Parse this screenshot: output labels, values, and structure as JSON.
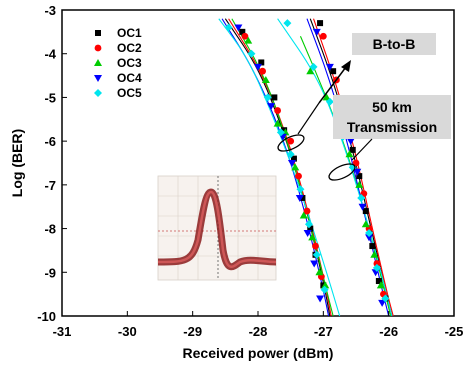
{
  "chart_data": {
    "type": "scatter",
    "title": "",
    "xlabel": "Received power (dBm)",
    "ylabel": "Log (BER)",
    "xlim": [
      -31,
      -25
    ],
    "ylim": [
      -10,
      -3
    ],
    "xticks": [
      "-31",
      "-30",
      "-29",
      "-28",
      "-27",
      "-26",
      "-25"
    ],
    "yticks": [
      "-3",
      "-4",
      "-5",
      "-6",
      "-7",
      "-8",
      "-9",
      "-10"
    ],
    "legend_position": "top-left",
    "grid": false,
    "series": [
      {
        "name": "OC1",
        "color": "#000000",
        "marker": "square",
        "points": [
          [
            -28.24,
            -3.5
          ],
          [
            -27.95,
            -4.2
          ],
          [
            -27.75,
            -5.0
          ],
          [
            -27.6,
            -5.75
          ],
          [
            -27.45,
            -6.4
          ],
          [
            -27.32,
            -7.3
          ],
          [
            -27.2,
            -8.0
          ],
          [
            -27.12,
            -8.6
          ],
          [
            -27.0,
            -9.3
          ],
          [
            -27.05,
            -3.3
          ],
          [
            -26.85,
            -4.4
          ],
          [
            -26.7,
            -5.2
          ],
          [
            -26.55,
            -6.2
          ],
          [
            -26.45,
            -6.8
          ],
          [
            -26.35,
            -7.6
          ],
          [
            -26.25,
            -8.4
          ],
          [
            -26.15,
            -9.2
          ],
          [
            -26.05,
            -9.6
          ]
        ]
      },
      {
        "name": "OC2",
        "color": "#ff0000",
        "marker": "circle",
        "points": [
          [
            -28.2,
            -3.6
          ],
          [
            -27.93,
            -4.4
          ],
          [
            -27.7,
            -5.3
          ],
          [
            -27.5,
            -6.0
          ],
          [
            -27.38,
            -6.8
          ],
          [
            -27.25,
            -7.6
          ],
          [
            -27.12,
            -8.4
          ],
          [
            -27.03,
            -9.1
          ],
          [
            -27.0,
            -3.6
          ],
          [
            -26.8,
            -4.6
          ],
          [
            -26.65,
            -5.5
          ],
          [
            -26.5,
            -6.5
          ],
          [
            -26.38,
            -7.2
          ],
          [
            -26.3,
            -8.0
          ],
          [
            -26.18,
            -8.8
          ],
          [
            -26.08,
            -9.5
          ]
        ]
      },
      {
        "name": "OC3",
        "color": "#00cc00",
        "marker": "triangle-up",
        "points": [
          [
            -28.15,
            -3.7
          ],
          [
            -27.88,
            -4.6
          ],
          [
            -27.7,
            -5.6
          ],
          [
            -27.58,
            -5.8
          ],
          [
            -27.43,
            -6.6
          ],
          [
            -27.3,
            -7.7
          ],
          [
            -27.17,
            -8.2
          ],
          [
            -27.06,
            -9.0
          ],
          [
            -26.97,
            -9.3
          ],
          [
            -27.2,
            -4.4
          ],
          [
            -26.95,
            -5.0
          ],
          [
            -26.75,
            -5.6
          ],
          [
            -26.6,
            -6.3
          ],
          [
            -26.45,
            -7.0
          ],
          [
            -26.35,
            -7.9
          ],
          [
            -26.22,
            -8.6
          ],
          [
            -26.12,
            -9.3
          ]
        ]
      },
      {
        "name": "OC4",
        "color": "#0000ff",
        "marker": "triangle-down",
        "points": [
          [
            -28.3,
            -3.4
          ],
          [
            -28.0,
            -4.3
          ],
          [
            -27.8,
            -5.2
          ],
          [
            -27.62,
            -5.9
          ],
          [
            -27.48,
            -6.5
          ],
          [
            -27.36,
            -7.3
          ],
          [
            -27.24,
            -8.1
          ],
          [
            -27.14,
            -8.8
          ],
          [
            -27.05,
            -9.6
          ],
          [
            -27.1,
            -3.5
          ],
          [
            -26.9,
            -4.3
          ],
          [
            -26.75,
            -5.1
          ],
          [
            -26.58,
            -6.0
          ],
          [
            -26.48,
            -6.7
          ],
          [
            -26.4,
            -7.5
          ],
          [
            -26.3,
            -8.2
          ],
          [
            -26.2,
            -9.0
          ],
          [
            -26.1,
            -9.7
          ]
        ]
      },
      {
        "name": "OC5",
        "color": "#00e5ee",
        "marker": "diamond",
        "points": [
          [
            -28.45,
            -3.4
          ],
          [
            -28.1,
            -4.0
          ],
          [
            -27.85,
            -5.0
          ],
          [
            -27.65,
            -5.8
          ],
          [
            -27.5,
            -6.3
          ],
          [
            -27.35,
            -7.1
          ],
          [
            -27.22,
            -7.9
          ],
          [
            -27.1,
            -8.6
          ],
          [
            -26.98,
            -9.4
          ],
          [
            -27.55,
            -3.3
          ],
          [
            -27.15,
            -4.3
          ],
          [
            -26.9,
            -5.1
          ],
          [
            -26.7,
            -5.9
          ],
          [
            -26.55,
            -6.6
          ],
          [
            -26.42,
            -7.3
          ],
          [
            -26.3,
            -8.1
          ],
          [
            -26.18,
            -8.9
          ],
          [
            -26.05,
            -9.6
          ]
        ]
      }
    ],
    "fit_curves": [
      {
        "color": "#000000",
        "points": [
          [
            -28.5,
            -3.2
          ],
          [
            -28.0,
            -4.3
          ],
          [
            -27.6,
            -5.8
          ],
          [
            -27.3,
            -7.3
          ],
          [
            -27.0,
            -9.2
          ],
          [
            -26.9,
            -10.0
          ]
        ]
      },
      {
        "color": "#ff0000",
        "points": [
          [
            -28.45,
            -3.2
          ],
          [
            -27.95,
            -4.4
          ],
          [
            -27.55,
            -5.9
          ],
          [
            -27.25,
            -7.5
          ],
          [
            -26.98,
            -9.2
          ],
          [
            -26.88,
            -10.0
          ]
        ]
      },
      {
        "color": "#00cc00",
        "points": [
          [
            -28.4,
            -3.2
          ],
          [
            -27.9,
            -4.5
          ],
          [
            -27.55,
            -6.0
          ],
          [
            -27.25,
            -7.6
          ],
          [
            -26.97,
            -9.3
          ],
          [
            -26.85,
            -10.0
          ]
        ]
      },
      {
        "color": "#0000ff",
        "points": [
          [
            -28.55,
            -3.2
          ],
          [
            -28.05,
            -4.4
          ],
          [
            -27.62,
            -5.9
          ],
          [
            -27.3,
            -7.5
          ],
          [
            -27.0,
            -9.4
          ],
          [
            -26.92,
            -10.0
          ]
        ]
      },
      {
        "color": "#00e5ee",
        "points": [
          [
            -28.6,
            -3.2
          ],
          [
            -28.15,
            -4.1
          ],
          [
            -27.75,
            -5.5
          ],
          [
            -27.35,
            -7.1
          ],
          [
            -26.95,
            -9.0
          ],
          [
            -26.75,
            -10.0
          ]
        ]
      },
      {
        "color": "#000000",
        "points": [
          [
            -27.2,
            -3.2
          ],
          [
            -26.85,
            -4.6
          ],
          [
            -26.55,
            -6.2
          ],
          [
            -26.3,
            -7.8
          ],
          [
            -26.05,
            -9.4
          ],
          [
            -25.95,
            -10.0
          ]
        ]
      },
      {
        "color": "#ff0000",
        "points": [
          [
            -27.15,
            -3.2
          ],
          [
            -26.8,
            -4.7
          ],
          [
            -26.5,
            -6.3
          ],
          [
            -26.25,
            -8.0
          ],
          [
            -26.02,
            -9.5
          ],
          [
            -25.93,
            -10.0
          ]
        ]
      },
      {
        "color": "#00cc00",
        "points": [
          [
            -27.35,
            -3.6
          ],
          [
            -26.95,
            -5.0
          ],
          [
            -26.6,
            -6.4
          ],
          [
            -26.3,
            -8.0
          ],
          [
            -26.05,
            -9.5
          ],
          [
            -25.97,
            -10.0
          ]
        ]
      },
      {
        "color": "#0000ff",
        "points": [
          [
            -27.25,
            -3.2
          ],
          [
            -26.9,
            -4.6
          ],
          [
            -26.6,
            -6.2
          ],
          [
            -26.35,
            -7.8
          ],
          [
            -26.1,
            -9.4
          ],
          [
            -26.0,
            -10.0
          ]
        ]
      },
      {
        "color": "#00e5ee",
        "points": [
          [
            -27.7,
            -3.2
          ],
          [
            -27.1,
            -4.5
          ],
          [
            -26.75,
            -5.8
          ],
          [
            -26.45,
            -7.2
          ],
          [
            -26.15,
            -8.8
          ],
          [
            -25.95,
            -10.0
          ]
        ]
      }
    ],
    "annotations": [
      {
        "text": "B-to-B"
      },
      {
        "text_line1": "50 km",
        "text_line2": "Transmission"
      }
    ],
    "inset": {
      "description_icon": "eye-diagram-pulse"
    }
  }
}
